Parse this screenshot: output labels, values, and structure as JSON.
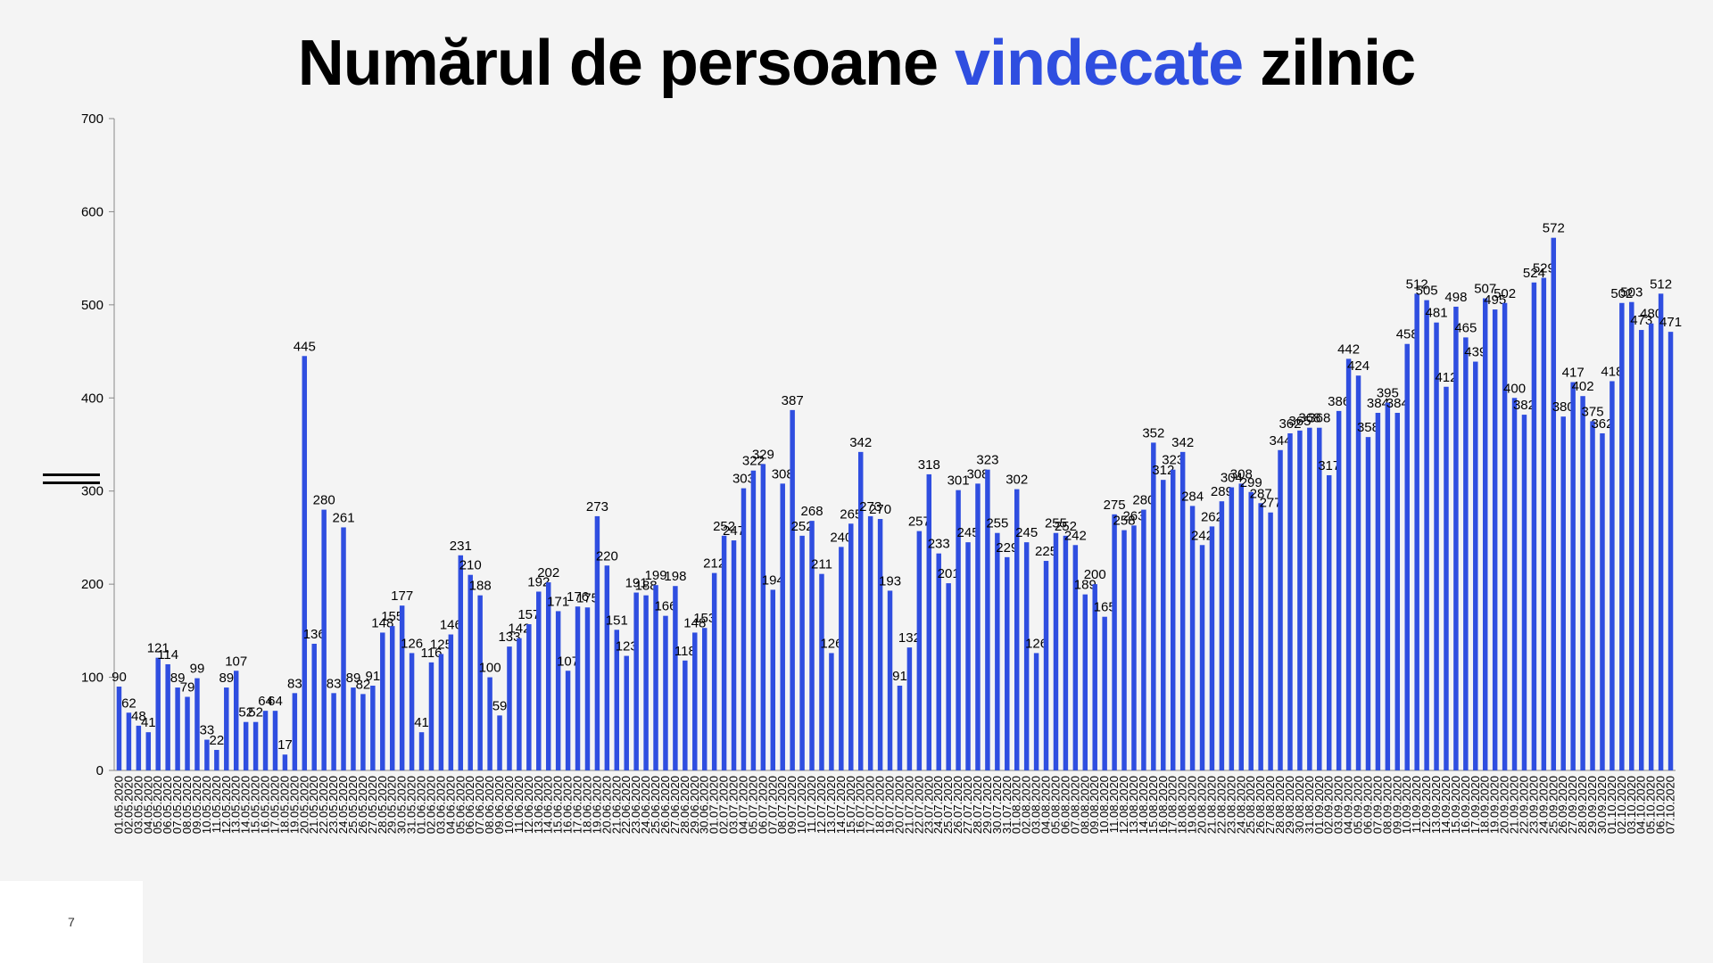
{
  "slide": {
    "title_part1": "Numărul de persoane ",
    "title_highlight": "vindecate",
    "title_part3": " zilnic",
    "page_number": "7"
  },
  "colors": {
    "bar": "#2f4ee0",
    "title_highlight": "#2f4ee0",
    "axis": "#888888"
  },
  "chart_data": {
    "type": "bar",
    "title": "Numărul de persoane vindecate zilnic",
    "ylim": [
      0,
      700
    ],
    "y_ticks": [
      0,
      100,
      200,
      300,
      400,
      500,
      600,
      700
    ],
    "grid": false,
    "legend": "none",
    "start_date": "2020-05-01",
    "values": [
      90,
      62,
      48,
      41,
      121,
      114,
      89,
      79,
      99,
      33,
      22,
      89,
      107,
      52,
      52,
      64,
      64,
      17,
      83,
      445,
      136,
      280,
      83,
      261,
      89,
      82,
      91,
      148,
      155,
      177,
      126,
      41,
      116,
      125,
      146,
      231,
      210,
      188,
      100,
      59,
      133,
      142,
      157,
      192,
      202,
      171,
      107,
      176,
      175,
      273,
      220,
      151,
      123,
      191,
      188,
      199,
      166,
      198,
      118,
      148,
      153,
      212,
      252,
      247,
      303,
      322,
      329,
      194,
      308,
      387,
      252,
      268,
      211,
      126,
      240,
      265,
      342,
      273,
      270,
      193,
      91,
      132,
      257,
      318,
      233,
      201,
      301,
      245,
      308,
      323,
      255,
      229,
      302,
      245,
      126,
      225,
      255,
      252,
      242,
      189,
      200,
      165,
      275,
      258,
      263,
      280,
      352,
      312,
      323,
      342,
      284,
      242,
      262,
      289,
      304,
      308,
      299,
      287,
      277,
      344,
      362,
      365,
      368,
      368,
      317,
      386,
      442,
      424,
      358,
      384,
      395,
      384,
      458,
      512,
      505,
      481,
      412,
      498,
      465,
      439,
      507,
      495,
      502,
      400,
      382,
      524,
      529,
      572,
      380,
      417,
      402,
      375,
      362,
      418,
      502,
      503,
      473,
      480,
      512,
      471
    ]
  }
}
